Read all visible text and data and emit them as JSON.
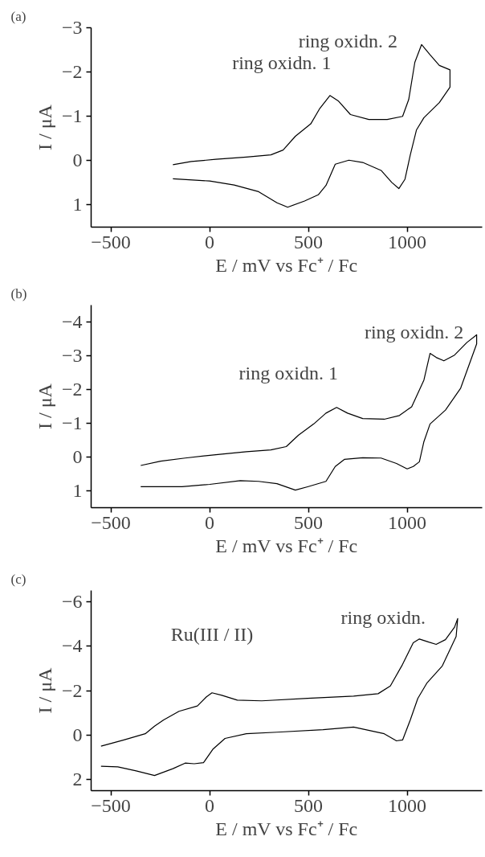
{
  "chart_data": [
    {
      "type": "line",
      "title": "(a)",
      "xlabel": "E / mV vs Fc⁺ / Fc",
      "ylabel": "I / μA",
      "xlim": [
        -600,
        1380
      ],
      "ylim": [
        1.5,
        -3
      ],
      "xticks": [
        -500,
        0,
        500,
        1000
      ],
      "yticks": [
        1,
        0,
        -1,
        -2,
        -3
      ],
      "grid": false,
      "marker": "none",
      "line_style": "solid",
      "annotations": [
        {
          "text": "ring oxidn. 1",
          "x": 609,
          "y": -1.47
        },
        {
          "text": "ring oxidn. 2",
          "x": 1073,
          "y": -2.62
        }
      ],
      "series": [
        {
          "color": "#000000",
          "x": [
            -186,
            -93,
            31,
            186,
            310,
            372,
            434,
            512,
            558,
            609,
            651,
            713,
            806,
            899,
            977,
            1008,
            1039,
            1073,
            1116,
            1163,
            1217,
            1217,
            1163,
            1085,
            1047,
            1016,
            989,
            958,
            922,
            868,
            775,
            705,
            636,
            589,
            550,
            481,
            395,
            341,
            248,
            124,
            0,
            -186
          ],
          "values": [
            0.09,
            0.02,
            -0.03,
            -0.08,
            -0.13,
            -0.24,
            -0.55,
            -0.83,
            -1.18,
            -1.47,
            -1.35,
            -1.04,
            -0.93,
            -0.93,
            -1.0,
            -1.38,
            -2.22,
            -2.62,
            -2.39,
            -2.15,
            -2.05,
            -1.66,
            -1.31,
            -0.97,
            -0.69,
            -0.13,
            0.42,
            0.63,
            0.49,
            0.22,
            0.04,
            -0.01,
            0.08,
            0.56,
            0.77,
            0.91,
            1.05,
            0.95,
            0.7,
            0.55,
            0.46,
            0.41
          ]
        }
      ]
    },
    {
      "type": "line",
      "title": "(b)",
      "xlabel": "E / mV vs Fc⁺ / Fc",
      "ylabel": "I / μA",
      "xlim": [
        -600,
        1380
      ],
      "ylim": [
        1.5,
        -4.5
      ],
      "xticks": [
        -500,
        0,
        500,
        1000
      ],
      "yticks": [
        1,
        0,
        -1,
        -2,
        -3,
        -4
      ],
      "grid": false,
      "marker": "none",
      "line_style": "solid",
      "annotations": [
        {
          "text": "ring oxidn. 1",
          "x": 643,
          "y": -1.47
        },
        {
          "text": "ring oxidn. 2",
          "x": 1116,
          "y": -3.07
        }
      ],
      "series": [
        {
          "color": "#000000",
          "x": [
            -349,
            -248,
            -124,
            31,
            186,
            310,
            388,
            450,
            527,
            589,
            643,
            698,
            775,
            884,
            961,
            1023,
            1085,
            1116,
            1147,
            1186,
            1240,
            1302,
            1352,
            1352,
            1271,
            1194,
            1116,
            1085,
            1062,
            1031,
            1000,
            946,
            868,
            775,
            682,
            636,
            589,
            496,
            434,
            341,
            248,
            155,
            0,
            -140,
            -349
          ],
          "values": [
            0.25,
            0.12,
            0.03,
            -0.07,
            -0.16,
            -0.21,
            -0.31,
            -0.65,
            -0.98,
            -1.3,
            -1.47,
            -1.3,
            -1.14,
            -1.12,
            -1.23,
            -1.49,
            -2.28,
            -3.07,
            -2.95,
            -2.85,
            -3.02,
            -3.39,
            -3.62,
            -3.35,
            -2.04,
            -1.39,
            -0.98,
            -0.46,
            0.14,
            0.28,
            0.35,
            0.19,
            0.03,
            0.02,
            0.07,
            0.28,
            0.72,
            0.88,
            0.98,
            0.79,
            0.72,
            0.7,
            0.81,
            0.88,
            0.88
          ]
        }
      ]
    },
    {
      "type": "line",
      "title": "(c)",
      "xlabel": "E / mV vs Fc⁺ / Fc",
      "ylabel": "I / μA",
      "xlim": [
        -600,
        1380
      ],
      "ylim": [
        2.5,
        -6.5
      ],
      "xticks": [
        -500,
        0,
        500,
        1000
      ],
      "yticks": [
        2,
        0,
        -2,
        -4,
        -6
      ],
      "grid": false,
      "marker": "none",
      "line_style": "solid",
      "annotations": [
        {
          "text": "Ru(III / II)",
          "x": 12,
          "y": -1.9
        },
        {
          "text": "ring oxidn.",
          "x": 1062,
          "y": -4.32
        }
      ],
      "series": [
        {
          "color": "#000000",
          "x": [
            -550,
            -434,
            -326,
            -279,
            -233,
            -155,
            -62,
            -16,
            12,
            62,
            140,
            264,
            496,
            729,
            853,
            915,
            977,
            1031,
            1062,
            1109,
            1147,
            1194,
            1240,
            1256,
            1248,
            1178,
            1101,
            1054,
            1016,
            977,
            946,
            884,
            729,
            574,
            341,
            186,
            78,
            16,
            -31,
            -78,
            -124,
            -186,
            -279,
            -372,
            -465,
            -550
          ],
          "values": [
            0.5,
            0.22,
            -0.06,
            -0.4,
            -0.68,
            -1.07,
            -1.31,
            -1.72,
            -1.9,
            -1.79,
            -1.57,
            -1.54,
            -1.65,
            -1.75,
            -1.86,
            -2.21,
            -3.18,
            -4.15,
            -4.32,
            -4.18,
            -4.08,
            -4.29,
            -4.85,
            -5.24,
            -4.43,
            -3.11,
            -2.35,
            -1.65,
            -0.68,
            0.22,
            0.26,
            -0.06,
            -0.36,
            -0.24,
            -0.13,
            -0.06,
            0.15,
            0.64,
            1.24,
            1.29,
            1.26,
            1.51,
            1.82,
            1.61,
            1.43,
            1.4
          ]
        }
      ]
    }
  ]
}
